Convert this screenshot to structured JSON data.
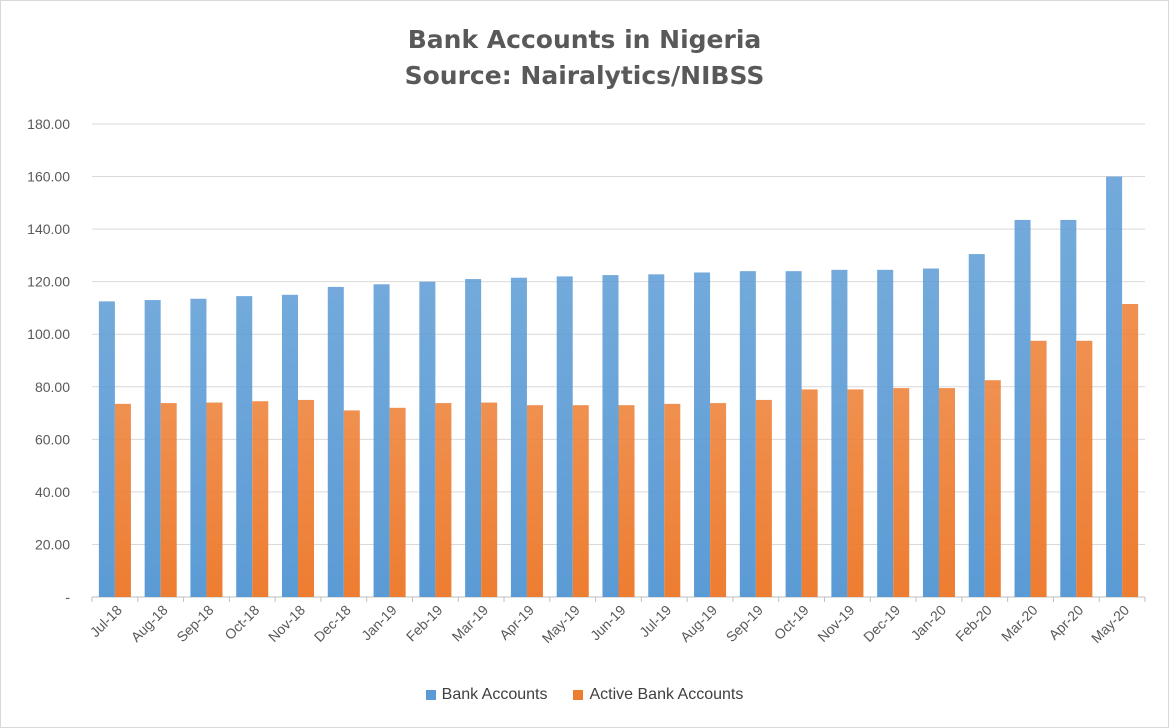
{
  "chart_data": {
    "type": "bar",
    "title": "Bank Accounts in Nigeria",
    "subtitle": "Source: Nairalytics/NIBSS",
    "categories": [
      "Jul-18",
      "Aug-18",
      "Sep-18",
      "Oct-18",
      "Nov-18",
      "Dec-18",
      "Jan-19",
      "Feb-19",
      "Mar-19",
      "Apr-19",
      "May-19",
      "Jun-19",
      "Jul-19",
      "Aug-19",
      "Sep-19",
      "Oct-19",
      "Nov-19",
      "Dec-19",
      "Jan-20",
      "Feb-20",
      "Mar-20",
      "Apr-20",
      "May-20"
    ],
    "series": [
      {
        "name": "Bank Accounts",
        "color": "#5b9bd5",
        "values": [
          112.5,
          113.0,
          113.5,
          114.5,
          115.0,
          118.0,
          119.0,
          120.0,
          121.0,
          121.5,
          122.0,
          122.5,
          122.8,
          123.5,
          124.0,
          124.0,
          124.5,
          124.5,
          125.0,
          130.5,
          143.5,
          143.5,
          160.0
        ]
      },
      {
        "name": "Active Bank Accounts",
        "color": "#ed7d31",
        "values": [
          73.5,
          73.8,
          74.0,
          74.5,
          75.0,
          71.0,
          72.0,
          73.8,
          74.0,
          73.0,
          73.0,
          73.0,
          73.5,
          73.8,
          75.0,
          79.0,
          79.0,
          79.5,
          79.5,
          82.5,
          97.5,
          97.5,
          111.5
        ]
      }
    ],
    "ylim": [
      0,
      180
    ],
    "yticks": [
      "-",
      "20.00",
      "40.00",
      "60.00",
      "80.00",
      "100.00",
      "120.00",
      "140.00",
      "160.00",
      "180.00"
    ],
    "grid": true,
    "legend_position": "bottom"
  }
}
